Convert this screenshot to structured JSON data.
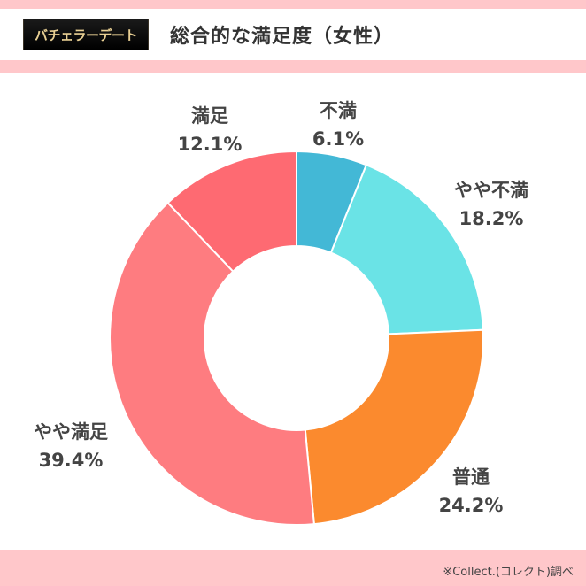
{
  "header": {
    "logo_text": "バチェラーデート",
    "title": "総合的な満足度（女性）"
  },
  "footer": {
    "credit": "※Collect.(コレクト)調べ"
  },
  "chart_data": {
    "type": "pie",
    "variant": "donut",
    "title": "総合的な満足度（女性）",
    "categories": [
      "不満",
      "やや不満",
      "普通",
      "やや満足",
      "満足"
    ],
    "values": [
      6.1,
      18.2,
      24.2,
      39.4,
      12.1
    ],
    "value_labels": [
      "6.1%",
      "18.2%",
      "24.2%",
      "39.4%",
      "12.1%"
    ],
    "colors": [
      "#43b8d6",
      "#6ae3e6",
      "#fb8a2e",
      "#fe7c80",
      "#fe6a72"
    ],
    "start": "12 o'clock",
    "direction": "clockwise",
    "legend": "none"
  }
}
